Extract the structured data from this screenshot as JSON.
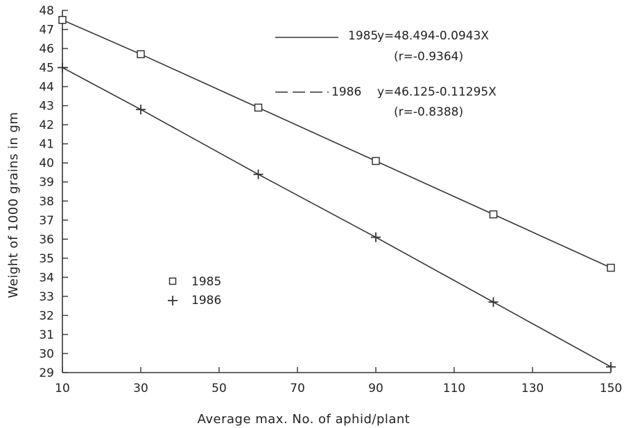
{
  "chart_data": {
    "type": "line",
    "xlabel": "Average max. No. of aphid/plant",
    "ylabel": "Weight of 1000 grains in gm",
    "xlim": [
      10,
      150
    ],
    "ylim": [
      29,
      48
    ],
    "x_ticks": [
      10,
      30,
      50,
      70,
      90,
      110,
      130,
      150
    ],
    "y_ticks": [
      29,
      30,
      31,
      32,
      33,
      34,
      35,
      36,
      37,
      38,
      39,
      40,
      41,
      42,
      43,
      44,
      45,
      46,
      47,
      48
    ],
    "grid": false,
    "series": [
      {
        "name": "1985",
        "marker": "square",
        "x": [
          10,
          30,
          60,
          90,
          120,
          150
        ],
        "y": [
          47.5,
          45.7,
          42.9,
          40.1,
          37.3,
          34.5
        ],
        "equation": "y=48.494-0.0943X",
        "r": "(r=-0.9364)"
      },
      {
        "name": "1986",
        "marker": "plus",
        "x": [
          10,
          30,
          60,
          90,
          120,
          150
        ],
        "y": [
          45.0,
          42.8,
          39.4,
          36.1,
          32.7,
          29.3
        ],
        "equation": "y=46.125-0.11295X",
        "r": "(r=-0.8388)"
      }
    ],
    "legend_placement": "lower-left"
  }
}
